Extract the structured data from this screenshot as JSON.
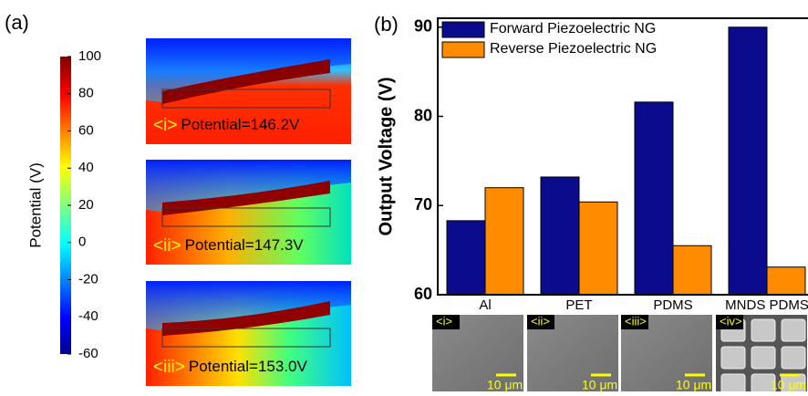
{
  "panel_labels": [
    "(a)",
    "(b)"
  ],
  "colorbar": {
    "label": "Potential (V)",
    "lim": [
      -60,
      100
    ],
    "ticks": [
      100,
      80,
      60,
      40,
      20,
      0,
      -20,
      -40,
      -60
    ]
  },
  "simulations": [
    {
      "tag": "<i>",
      "text": "Potential=146.2V"
    },
    {
      "tag": "<ii>",
      "text": "Potential=147.3V"
    },
    {
      "tag": "<iii>",
      "text": "Potential=153.0V"
    }
  ],
  "chart_data": {
    "type": "bar",
    "ylabel": "Output Voltage (V)",
    "categories": [
      "Al",
      "PET",
      "PDMS",
      "MNDS PDMS"
    ],
    "series": [
      {
        "name": "Forward Piezoelectric NG",
        "color": "#0b0b8e",
        "values": [
          68.3,
          73.2,
          81.6,
          90
        ]
      },
      {
        "name": "Reverse Piezoelectric NG",
        "color": "#ff8c00",
        "values": [
          72,
          70.4,
          65.5,
          63.1
        ]
      }
    ],
    "ylim": [
      60,
      91
    ],
    "yticks": [
      60,
      70,
      80,
      90
    ],
    "legend": "upper-left"
  },
  "sem_images": [
    {
      "tag": "<i>",
      "scale": "10 μm"
    },
    {
      "tag": "<ii>",
      "scale": "10 μm"
    },
    {
      "tag": "<iii>",
      "scale": "10 μm"
    },
    {
      "tag": "<iv>",
      "scale": "10 μm"
    }
  ]
}
